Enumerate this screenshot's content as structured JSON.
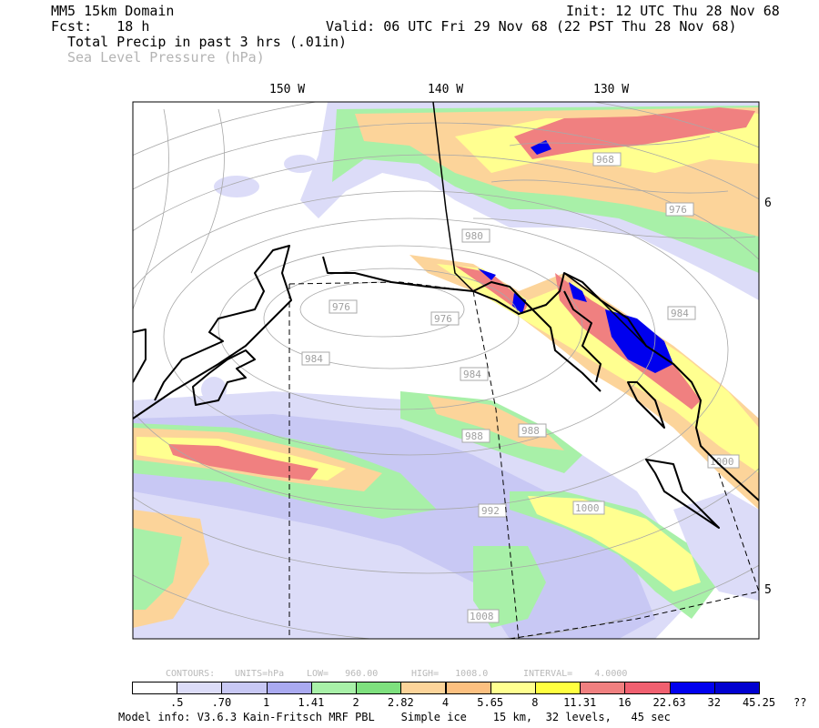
{
  "header": {
    "domain": "MM5 15km Domain",
    "init": "Init: 12 UTC Thu 28 Nov 68",
    "fcst": "Fcst:   18 h",
    "valid": "Valid: 06 UTC Fri 29 Nov 68 (22 PST Thu 28 Nov 68)",
    "field1": "Total Precip in past 3 hrs (.01in)",
    "field2": "Sea Level Pressure (hPa)"
  },
  "map": {
    "longitude_labels": [
      "150 W",
      "140 W",
      "130 W"
    ],
    "latitude_labels": [
      "6",
      "5"
    ],
    "isobar_labels": [
      "968",
      "976",
      "980",
      "976",
      "976",
      "984",
      "984",
      "984",
      "988",
      "988",
      "992",
      "1000",
      "1000",
      "1008"
    ]
  },
  "contour_info": {
    "contours": "CONTOURS:",
    "units": "UNITS=hPa",
    "low": "LOW=   960.00",
    "high": "HIGH=   1008.0",
    "interval": "INTERVAL=    4.0000"
  },
  "colorbar": {
    "colors": [
      "#ffffff",
      "#dcdcf8",
      "#c8c8f4",
      "#aaaaf0",
      "#a8f0a8",
      "#7ee07e",
      "#fcd49a",
      "#fcc080",
      "#ffff90",
      "#ffff40",
      "#f08080",
      "#f06070",
      "#0000ee",
      "#0000d0"
    ],
    "labels": [
      ".5",
      ".70",
      "1",
      "1.41",
      "2",
      "2.82",
      "4",
      "5.65",
      "8",
      "11.31",
      "16",
      "22.63",
      "32",
      "45.25",
      "??"
    ]
  },
  "footer": {
    "model_info": "Model info: V3.6.3 Kain-Fritsch MRF PBL    Simple ice    15 km,  32 levels,   45 sec"
  }
}
